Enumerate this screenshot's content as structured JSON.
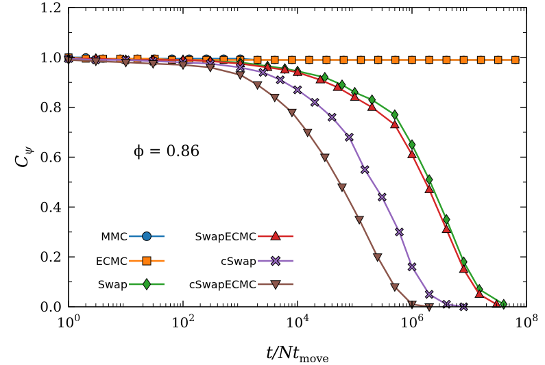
{
  "chart_data": {
    "type": "line",
    "xlabel": "t/Nt_move",
    "ylabel": "C_ψ",
    "xscale": "log",
    "xlim": [
      1,
      100000000
    ],
    "ylim": [
      0,
      1.2
    ],
    "x_ticks": [
      1,
      100,
      10000,
      1000000,
      100000000
    ],
    "x_tick_labels": [
      "10^0",
      "10^2",
      "10^4",
      "10^6",
      "10^8"
    ],
    "y_ticks": [
      0.0,
      0.2,
      0.4,
      0.6,
      0.8,
      1.0,
      1.2
    ],
    "y_tick_labels": [
      "0.0",
      "0.2",
      "0.4",
      "0.6",
      "0.8",
      "1.0",
      "1.2"
    ],
    "grid": false,
    "annotation": "ϕ = 0.86",
    "legend_placement": "bottom-left",
    "series": [
      {
        "name": "MMC",
        "color": "#1f77b4",
        "marker": "circle",
        "points": [
          [
            1,
            1.0
          ],
          [
            2,
            1.0
          ],
          [
            4,
            0.995
          ],
          [
            8,
            0.995
          ],
          [
            16,
            0.995
          ],
          [
            32,
            0.995
          ],
          [
            64,
            0.995
          ],
          [
            128,
            0.995
          ],
          [
            256,
            0.995
          ],
          [
            512,
            0.995
          ],
          [
            1000,
            0.995
          ],
          [
            2000,
            0.99
          ],
          [
            4000,
            0.99
          ],
          [
            8000,
            0.99
          ],
          [
            16000,
            0.99
          ],
          [
            32000,
            0.99
          ],
          [
            64000,
            0.99
          ],
          [
            128000,
            0.99
          ],
          [
            256000,
            0.99
          ],
          [
            512000,
            0.99
          ],
          [
            1000000,
            0.99
          ],
          [
            2000000,
            0.99
          ],
          [
            4000000,
            0.99
          ],
          [
            8000000,
            0.99
          ],
          [
            16000000,
            0.99
          ],
          [
            32000000,
            0.99
          ],
          [
            64000000,
            0.99
          ]
        ]
      },
      {
        "name": "ECMC",
        "color": "#ff7f0e",
        "marker": "square",
        "points": [
          [
            1,
            1.0
          ],
          [
            2,
            0.995
          ],
          [
            4,
            0.995
          ],
          [
            8,
            0.995
          ],
          [
            16,
            0.995
          ],
          [
            32,
            0.995
          ],
          [
            64,
            0.99
          ],
          [
            128,
            0.99
          ],
          [
            256,
            0.99
          ],
          [
            512,
            0.99
          ],
          [
            1000,
            0.99
          ],
          [
            2000,
            0.99
          ],
          [
            4000,
            0.99
          ],
          [
            8000,
            0.99
          ],
          [
            16000,
            0.99
          ],
          [
            32000,
            0.99
          ],
          [
            64000,
            0.99
          ],
          [
            128000,
            0.99
          ],
          [
            256000,
            0.99
          ],
          [
            512000,
            0.99
          ],
          [
            1000000,
            0.99
          ],
          [
            2000000,
            0.99
          ],
          [
            4000000,
            0.99
          ],
          [
            8000000,
            0.99
          ],
          [
            16000000,
            0.99
          ],
          [
            32000000,
            0.99
          ],
          [
            64000000,
            0.99
          ]
        ]
      },
      {
        "name": "Swap",
        "color": "#2ca02c",
        "marker": "diamond",
        "points": [
          [
            1,
            0.995
          ],
          [
            3,
            0.995
          ],
          [
            10,
            0.99
          ],
          [
            30,
            0.99
          ],
          [
            100,
            0.99
          ],
          [
            300,
            0.985
          ],
          [
            1000,
            0.98
          ],
          [
            3000,
            0.965
          ],
          [
            6000,
            0.955
          ],
          [
            10000,
            0.945
          ],
          [
            30000,
            0.92
          ],
          [
            60000,
            0.89
          ],
          [
            100000,
            0.86
          ],
          [
            200000,
            0.83
          ],
          [
            500000,
            0.77
          ],
          [
            1000000,
            0.65
          ],
          [
            2000000,
            0.51
          ],
          [
            4000000,
            0.35
          ],
          [
            8000000,
            0.18
          ],
          [
            15000000,
            0.07
          ],
          [
            40000000,
            0.01
          ]
        ]
      },
      {
        "name": "SwapECMC",
        "color": "#d62728",
        "marker": "triangle-up",
        "points": [
          [
            1,
            0.995
          ],
          [
            3,
            0.995
          ],
          [
            10,
            0.99
          ],
          [
            30,
            0.99
          ],
          [
            100,
            0.99
          ],
          [
            300,
            0.985
          ],
          [
            1000,
            0.975
          ],
          [
            3000,
            0.96
          ],
          [
            6000,
            0.95
          ],
          [
            10000,
            0.94
          ],
          [
            25000,
            0.91
          ],
          [
            50000,
            0.88
          ],
          [
            100000,
            0.84
          ],
          [
            200000,
            0.8
          ],
          [
            500000,
            0.73
          ],
          [
            1000000,
            0.61
          ],
          [
            2000000,
            0.47
          ],
          [
            4000000,
            0.31
          ],
          [
            8000000,
            0.15
          ],
          [
            15000000,
            0.05
          ],
          [
            30000000,
            0.01
          ]
        ]
      },
      {
        "name": "cSwap",
        "color": "#9467bd",
        "marker": "x",
        "points": [
          [
            1,
            0.995
          ],
          [
            3,
            0.99
          ],
          [
            10,
            0.99
          ],
          [
            30,
            0.985
          ],
          [
            100,
            0.98
          ],
          [
            300,
            0.975
          ],
          [
            1000,
            0.96
          ],
          [
            2500,
            0.94
          ],
          [
            5000,
            0.91
          ],
          [
            10000,
            0.87
          ],
          [
            20000,
            0.82
          ],
          [
            40000,
            0.76
          ],
          [
            80000,
            0.68
          ],
          [
            150000,
            0.55
          ],
          [
            300000,
            0.44
          ],
          [
            600000,
            0.3
          ],
          [
            1000000,
            0.16
          ],
          [
            2000000,
            0.05
          ],
          [
            4000000,
            0.01
          ],
          [
            8000000,
            0.0
          ]
        ]
      },
      {
        "name": "cSwapECMC",
        "color": "#8c564b",
        "marker": "triangle-down",
        "points": [
          [
            1,
            0.99
          ],
          [
            3,
            0.985
          ],
          [
            10,
            0.98
          ],
          [
            30,
            0.975
          ],
          [
            100,
            0.97
          ],
          [
            300,
            0.96
          ],
          [
            1000,
            0.93
          ],
          [
            2000,
            0.89
          ],
          [
            4000,
            0.84
          ],
          [
            8000,
            0.78
          ],
          [
            15000,
            0.7
          ],
          [
            30000,
            0.6
          ],
          [
            60000,
            0.48
          ],
          [
            120000,
            0.35
          ],
          [
            250000,
            0.2
          ],
          [
            500000,
            0.08
          ],
          [
            1000000,
            0.01
          ],
          [
            2000000,
            0.0
          ]
        ]
      }
    ]
  }
}
